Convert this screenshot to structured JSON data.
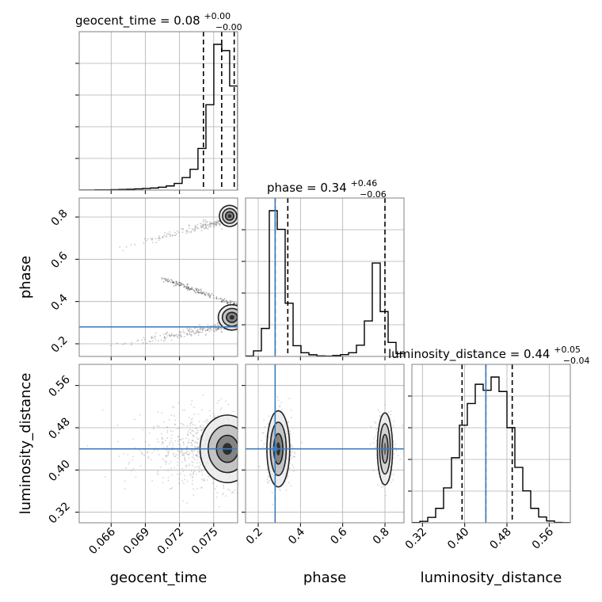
{
  "chart_data": {
    "type": "corner",
    "parameters": [
      "geocent_time",
      "phase",
      "luminosity_distance"
    ],
    "axis_labels": {
      "geocent_time": "geocent_time",
      "phase": "phase",
      "luminosity_distance": "luminosity_distance"
    },
    "ranges": {
      "geocent_time": [
        0.0632,
        0.0771
      ],
      "phase": [
        0.14,
        0.89
      ],
      "luminosity_distance": [
        0.3,
        0.6
      ]
    },
    "ticks": {
      "geocent_time": [
        0.066,
        0.069,
        0.072,
        0.075
      ],
      "phase": [
        0.2,
        0.4,
        0.6,
        0.8
      ],
      "luminosity_distance": [
        0.32,
        0.4,
        0.48,
        0.56
      ]
    },
    "tick_labels": {
      "geocent_time": [
        "0.066",
        "0.069",
        "0.072",
        "0.075"
      ],
      "phase": [
        "0.2",
        "0.4",
        "0.6",
        "0.8"
      ],
      "luminosity_distance": [
        "0.32",
        "0.40",
        "0.48",
        "0.56"
      ]
    },
    "injection": {
      "phase": 0.28,
      "luminosity_distance": 0.44
    },
    "titles": {
      "geocent_time": {
        "prefix": "geocent_time = 0.08",
        "sup": "+0.00",
        "sub": "−0.00"
      },
      "phase": {
        "prefix": "phase = 0.34",
        "sup": "+0.46",
        "sub": "−0.06"
      },
      "luminosity_distance": {
        "prefix": "luminosity_distance = 0.44",
        "sup": "+0.05",
        "sub": "−0.04"
      }
    },
    "quantiles": {
      "geocent_time": [
        0.0741,
        0.0757,
        0.0768
      ],
      "phase": [
        0.28,
        0.34,
        0.8
      ],
      "luminosity_distance": [
        0.395,
        0.44,
        0.49
      ]
    },
    "histograms": {
      "geocent_time": {
        "edges": [
          0.0632,
          0.06389,
          0.06459,
          0.06528,
          0.06598,
          0.06667,
          0.06737,
          0.06806,
          0.06876,
          0.06945,
          0.07015,
          0.07084,
          0.07154,
          0.07223,
          0.07293,
          0.07362,
          0.07432,
          0.07501,
          0.07571,
          0.0764,
          0.0771
        ],
        "counts": [
          0,
          0,
          1,
          1,
          2,
          3,
          4,
          6,
          8,
          10,
          14,
          20,
          32,
          60,
          100,
          200,
          410,
          700,
          670,
          500
        ]
      },
      "phase": {
        "edges": [
          0.14,
          0.1775,
          0.215,
          0.2525,
          0.29,
          0.3275,
          0.365,
          0.4025,
          0.44,
          0.4775,
          0.515,
          0.5525,
          0.59,
          0.6275,
          0.665,
          0.7025,
          0.74,
          0.7775,
          0.815,
          0.8525,
          0.89
        ],
        "counts": [
          5,
          60,
          300,
          1560,
          1360,
          570,
          115,
          40,
          18,
          6,
          4,
          10,
          20,
          40,
          120,
          380,
          1000,
          480,
          150,
          30
        ]
      },
      "luminosity_distance": {
        "edges": [
          0.3,
          0.315,
          0.33,
          0.345,
          0.36,
          0.375,
          0.39,
          0.405,
          0.42,
          0.435,
          0.45,
          0.465,
          0.48,
          0.495,
          0.51,
          0.525,
          0.54,
          0.555,
          0.57,
          0.585,
          0.6
        ],
        "counts": [
          2,
          12,
          45,
          120,
          290,
          540,
          810,
          990,
          1150,
          1100,
          1210,
          1090,
          790,
          460,
          265,
          120,
          48,
          15,
          3,
          1
        ]
      }
    },
    "joint_panels": [
      {
        "x": "geocent_time",
        "y": "phase"
      },
      {
        "x": "geocent_time",
        "y": "luminosity_distance"
      },
      {
        "x": "phase",
        "y": "luminosity_distance"
      }
    ],
    "density_modes": [
      {
        "panel": "geocent_time/phase",
        "peaks": [
          [
            0.0762,
            0.8
          ],
          [
            0.0767,
            0.33
          ],
          [
            0.0762,
            0.3
          ]
        ]
      },
      {
        "panel": "geocent_time/luminosity_distance",
        "peaks": [
          [
            0.0757,
            0.44
          ]
        ]
      },
      {
        "panel": "phase/luminosity_distance",
        "peaks": [
          [
            0.29,
            0.44
          ],
          [
            0.8,
            0.44
          ]
        ]
      }
    ]
  }
}
